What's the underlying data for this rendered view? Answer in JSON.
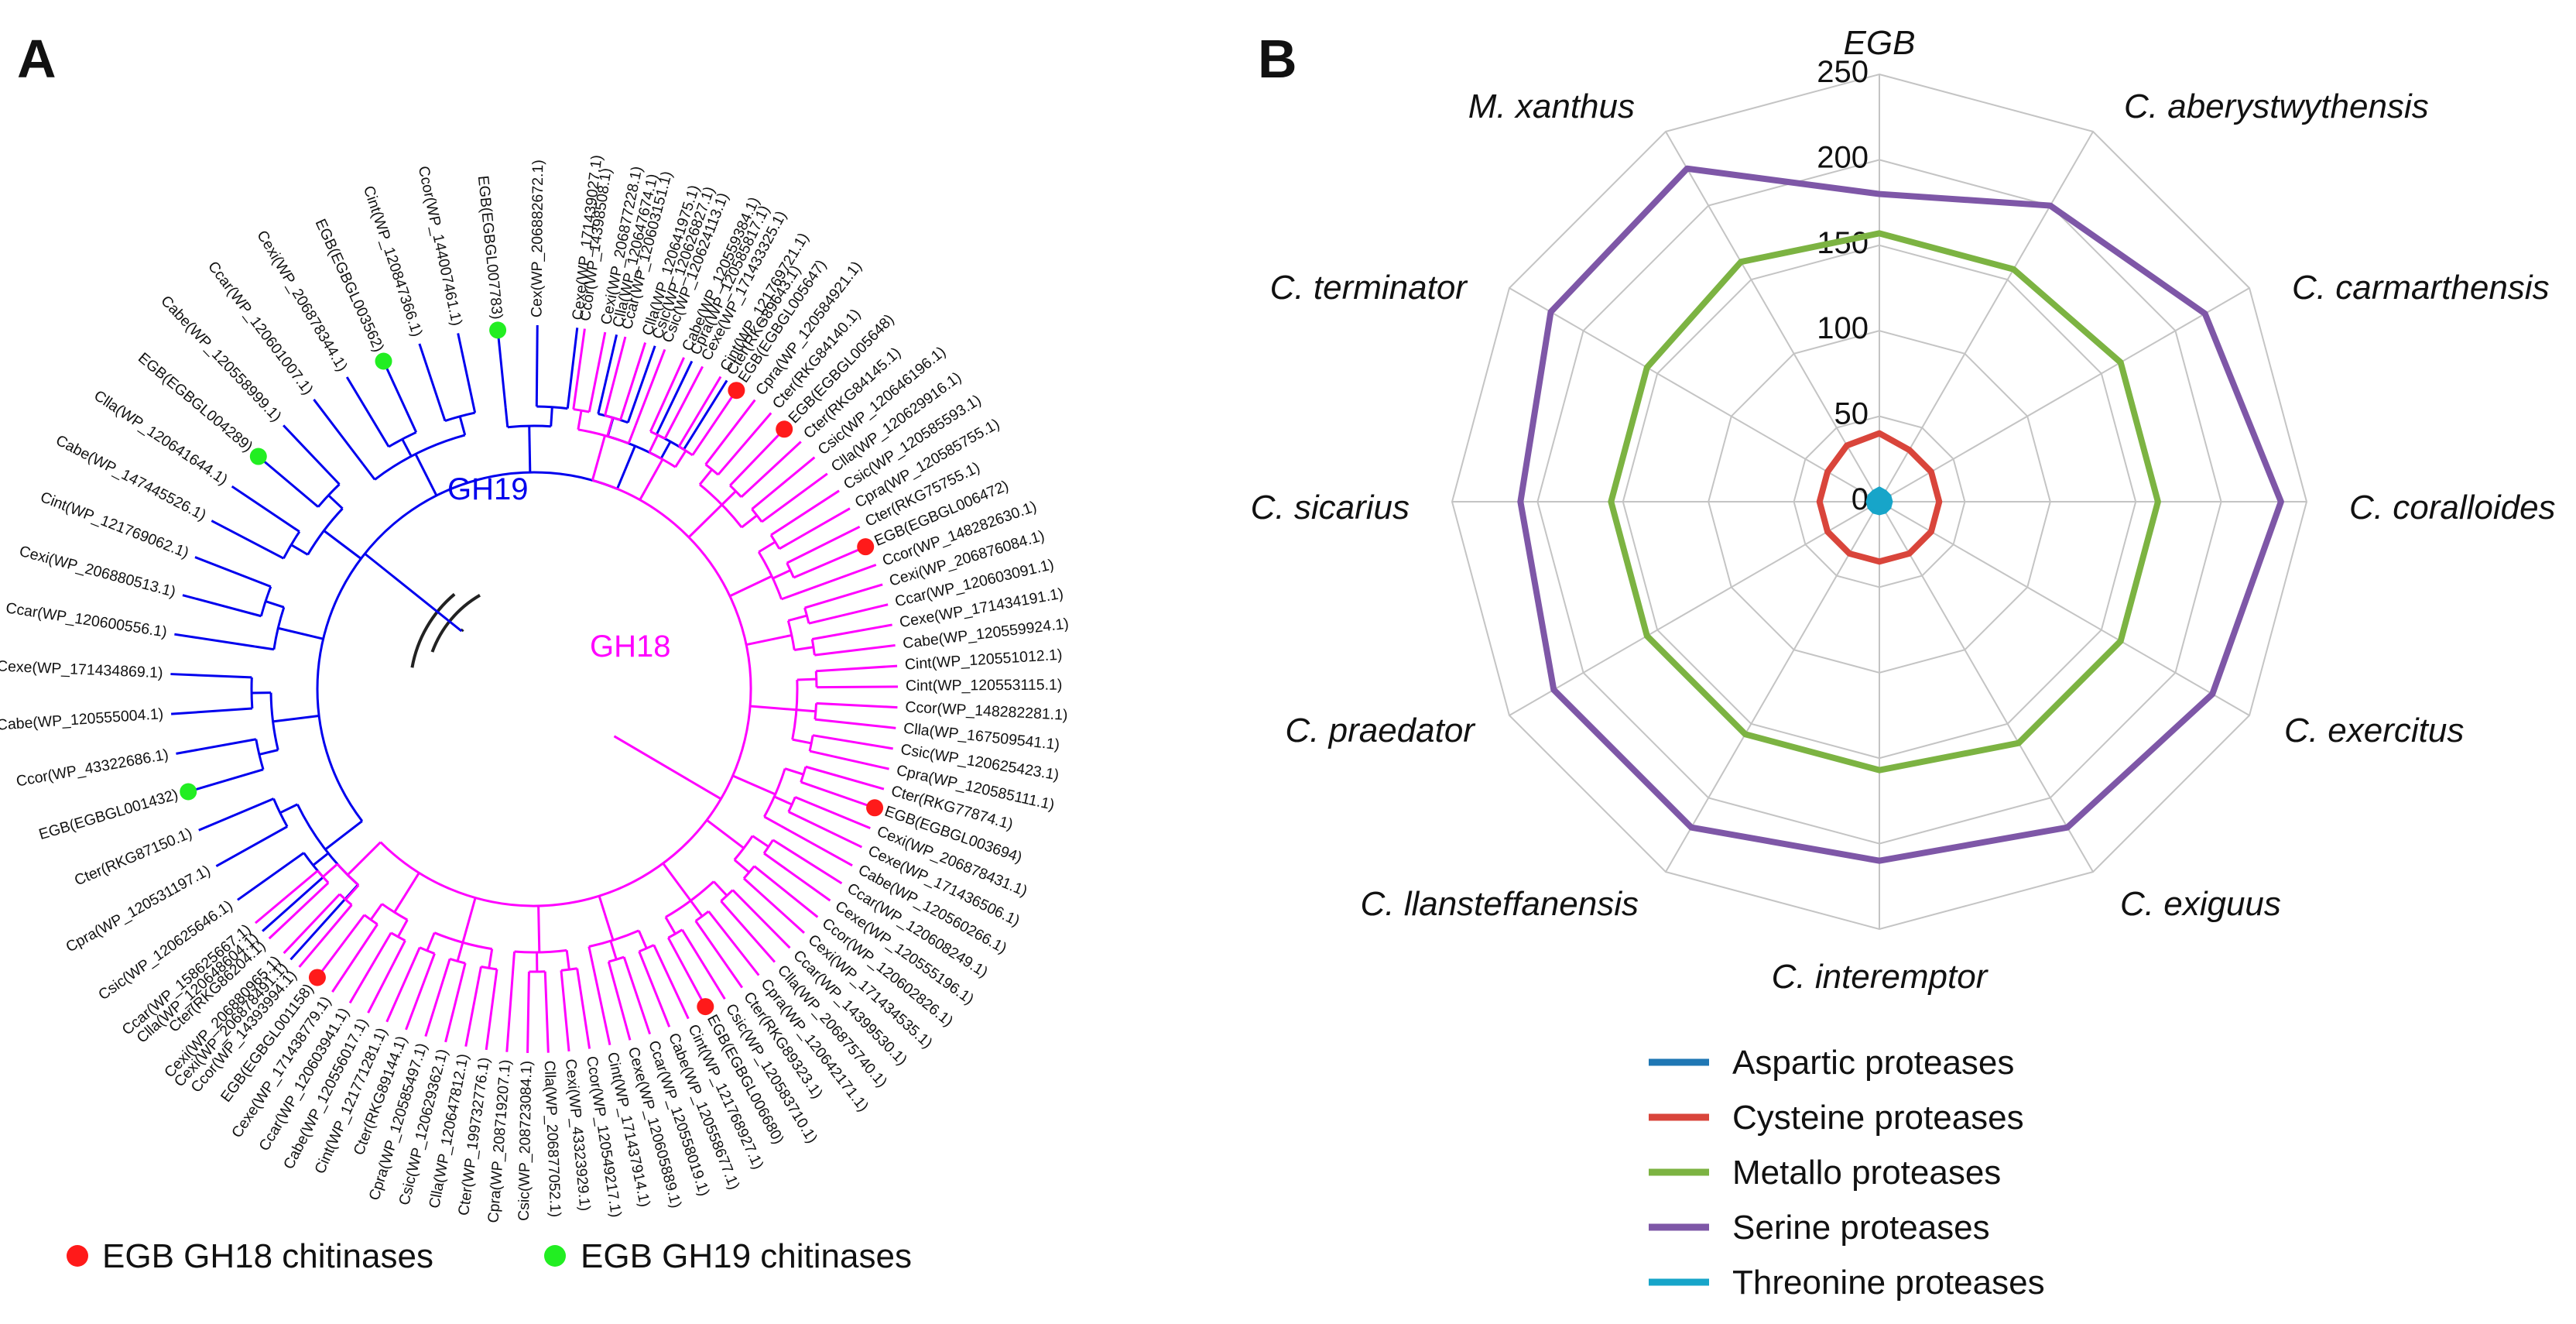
{
  "panel_a": {
    "letter": "A",
    "tree": {
      "gh19_leaves": [
        "Cter(RKG89643.1)",
        "Cpra(WP_120585817.1)",
        "Csic(WP_120626827.1)",
        "Clla(WP_120647674.1)",
        "Cexe(WP_171439027.1)",
        "Cex(WP_206882672.1)",
        "EGB(EGBGL007783)",
        "Ccor(WP_144007461.1)",
        "Cint(WP_120847366.1)",
        "EGB(EGBGL003562)",
        "Cexi(WP_206878344.1)",
        "Ccar(WP_120601007.1)",
        "Cabe(WP_120558999.1)",
        "EGB(EGBGL004289)",
        "Clla(WP_120641644.1)",
        "Cabe(WP_147445526.1)",
        "Cint(WP_121769062.1)",
        "Cexi(WP_206880513.1)",
        "Ccar(WP_120600556.1)",
        "Cexe(WP_171434869.1)",
        "Cabe(WP_120555004.1)",
        "Ccor(WP_43322686.1)",
        "EGB(EGBGL001432)",
        "Cter(RKG87150.1)",
        "Cpra(WP_120531197.1)",
        "Csic(WP_120625646.1)",
        "Clla(WP_120648604.1)",
        "Cexi(WP_206878491.1)"
      ],
      "gh18_leaves": [
        "Ccor(WP_14398508.1)",
        "Cexi(WP_206877228.1)",
        "Ccar(WP_120603151.1)",
        "Clla(WP_120641975.1)",
        "Csic(WP_120624113.1)",
        "Cabe(WP_120559384.1)",
        "Cexe(WP_171433325.1)",
        "Cint(WP_121769721.1)",
        "EGB(EGBGL005647)",
        "Cpra(WP_120584921.1)",
        "Cter(RKG84140.1)",
        "EGB(EGBGL005648)",
        "Cter(RKG84145.1)",
        "Csic(WP_120646196.1)",
        "Clla(WP_120629916.1)",
        "Csic(WP_120585593.1)",
        "Cpra(WP_120585755.1)",
        "Cter(RKG75755.1)",
        "EGB(EGBGL006472)",
        "Ccor(WP_148282630.1)",
        "Cexi(WP_206876084.1)",
        "Ccar(WP_120603091.1)",
        "Cexe(WP_171434191.1)",
        "Cabe(WP_120559924.1)",
        "Cint(WP_120551012.1)",
        "Cint(WP_120553115.1)",
        "Ccor(WP_148282281.1)",
        "Clla(WP_167509541.1)",
        "Csic(WP_120625423.1)",
        "Cpra(WP_120585111.1)",
        "Cter(RKG77874.1)",
        "EGB(EGBGL003694)",
        "Cexi(WP_206878431.1)",
        "Cexe(WP_171436506.1)",
        "Cabe(WP_120560266.1)",
        "Ccar(WP_120608249.1)",
        "Cexe(WP_120555196.1)",
        "Ccor(WP_120602826.1)",
        "Cexi(WP_171434535.1)",
        "Ccar(WP_14399530.1)",
        "Clla(WP_206875740.1)",
        "Cpra(WP_120642171.1)",
        "Cter(RKG89323.1)",
        "Csic(WP_120583710.1)",
        "EGB(EGBGL006680)",
        "Cint(WP_121768927.1)",
        "Cabe(WP_120558677.1)",
        "Ccar(WP_120558019.1)",
        "Cexe(WP_120605889.1)",
        "Cint(WP_171437914.1)",
        "Ccor(WP_120549217.1)",
        "Cexi(WP_43323929.1)",
        "Clla(WP_206877052.1)",
        "Csic(WP_208723084.1)",
        "Cpra(WP_208719207.1)",
        "Cter(WP_199732776.1)",
        "Clla(WP_120647812.1)",
        "Csic(WP_120629362.1)",
        "Cpra(WP_120585497.1)",
        "Cter(RKG89144.1)",
        "Cint(WP_121771281.1)",
        "Cabe(WP_120556017.1)",
        "Ccar(WP_120603941.1)",
        "Cexe(WP_171438779.1)",
        "EGB(EGBGL001158)",
        "Ccor(WP_14393994.1)",
        "Cexi(WP_206880965.1)",
        "Cter(RKG86204.1)",
        "Ccar(WP_158625667.1)"
      ],
      "clade_gh19": "GH19",
      "clade_gh18": "GH18"
    },
    "legend": {
      "gh18": "EGB GH18 chitinases",
      "gh19": "EGB GH19 chitinases"
    },
    "colors": {
      "gh18": "#ff00ff",
      "gh19": "#0000ee",
      "root": "#222222",
      "dot18": "#ff1a1a",
      "dot19": "#22ee22"
    }
  },
  "panel_b": {
    "letter": "B",
    "legend": [
      "Aspartic proteases",
      "Cysteine proteases",
      "Metallo proteases",
      "Serine proteases",
      "Threonine proteases"
    ]
  },
  "chart_data": {
    "type": "radar",
    "title": "",
    "axes": [
      "EGB",
      "C. aberystwythensis",
      "C. carmarthensis",
      "C. coralloides",
      "C. exercitus",
      "C. exiguus",
      "C. interemptor",
      "C. llansteffanensis",
      "C. praedator",
      "C. sicarius",
      "C. terminator",
      "M. xanthus"
    ],
    "rlim": [
      0,
      250
    ],
    "ticks": [
      "0",
      "50",
      "100",
      "150",
      "200",
      "250"
    ],
    "series": [
      {
        "name": "Aspartic proteases",
        "color": "#1f77b4",
        "values": [
          2,
          1,
          1,
          1,
          1,
          1,
          1,
          1,
          1,
          1,
          1,
          1
        ]
      },
      {
        "name": "Cysteine proteases",
        "color": "#d9453b",
        "values": [
          40,
          35,
          35,
          35,
          35,
          35,
          35,
          35,
          35,
          35,
          35,
          38
        ]
      },
      {
        "name": "Metallo proteases",
        "color": "#7cb342",
        "values": [
          157,
          157,
          163,
          163,
          163,
          163,
          157,
          157,
          157,
          157,
          157,
          162
        ]
      },
      {
        "name": "Serine proteases",
        "color": "#7e57a7",
        "values": [
          180,
          200,
          220,
          235,
          225,
          220,
          210,
          220,
          220,
          210,
          222,
          225
        ]
      },
      {
        "name": "Threonine proteases",
        "color": "#17a5c9",
        "values": [
          8,
          7,
          7,
          7,
          7,
          7,
          7,
          7,
          7,
          7,
          7,
          7
        ]
      }
    ]
  }
}
